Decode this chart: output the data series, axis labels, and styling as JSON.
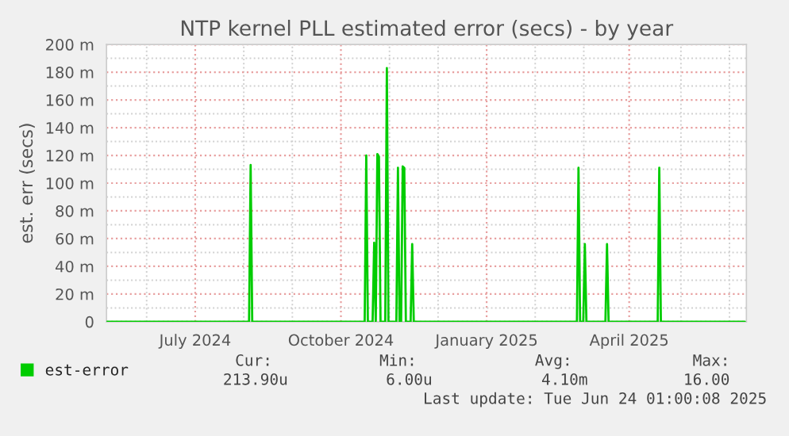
{
  "chart_data": {
    "type": "line",
    "title": "NTP kernel PLL estimated error (secs) - by year",
    "ylabel": "est. err (secs)",
    "x": [
      "2024-05-06",
      "2024-08-04",
      "2024-08-05",
      "2024-08-06",
      "2024-10-16",
      "2024-10-17",
      "2024-10-18",
      "2024-10-21",
      "2024-10-22",
      "2024-10-23",
      "2024-10-24",
      "2024-10-25",
      "2024-10-26",
      "2024-10-29",
      "2024-10-30",
      "2024-10-31",
      "2024-11-05",
      "2024-11-06",
      "2024-11-07",
      "2024-11-08",
      "2024-11-09",
      "2024-11-10",
      "2024-11-11",
      "2024-11-14",
      "2024-11-15",
      "2024-11-16",
      "2025-02-27",
      "2025-02-28",
      "2025-03-01",
      "2025-03-03",
      "2025-03-04",
      "2025-03-05",
      "2025-03-17",
      "2025-03-18",
      "2025-03-19",
      "2025-04-19",
      "2025-04-20",
      "2025-04-21",
      "2025-06-13"
    ],
    "series": [
      {
        "name": "est-error",
        "color": "#00cc00",
        "values": [
          0,
          0,
          113,
          0,
          0,
          120,
          0,
          0,
          57,
          0,
          121,
          119,
          0,
          0,
          183,
          0,
          0,
          111,
          0,
          0,
          112,
          111,
          0,
          0,
          56,
          0,
          0,
          111,
          0,
          0,
          56,
          0,
          0,
          56,
          0,
          0,
          111,
          0,
          0
        ]
      }
    ],
    "xlim": [
      "2024-05-06",
      "2025-06-14"
    ],
    "xticks": [
      {
        "value": "2024-07-01",
        "label": "July 2024"
      },
      {
        "value": "2024-10-01",
        "label": "October 2024"
      },
      {
        "value": "2025-01-01",
        "label": "January 2025"
      },
      {
        "value": "2025-04-01",
        "label": "April 2025"
      }
    ],
    "ylim": [
      0,
      200
    ],
    "yticks": [
      0,
      {
        "value": 20,
        "label": "20 m"
      },
      {
        "value": 40,
        "label": "40 m"
      },
      {
        "value": 60,
        "label": "60 m"
      },
      {
        "value": 80,
        "label": "80 m"
      },
      {
        "value": 100,
        "label": "100 m"
      },
      {
        "value": 120,
        "label": "120 m"
      },
      {
        "value": 140,
        "label": "140 m"
      },
      {
        "value": 160,
        "label": "160 m"
      },
      {
        "value": 180,
        "label": "180 m"
      },
      {
        "value": 200,
        "label": "200 m"
      }
    ],
    "grid": true,
    "legend": "bottom",
    "marker": "none",
    "line_style": "solid",
    "annotations": [
      "Cur:",
      "Min:",
      "Avg:",
      "Max:",
      "213.90u",
      "6.00u",
      "4.10m",
      "16.00",
      "Last update: Tue Jun 24 01:00:08 2025"
    ]
  }
}
